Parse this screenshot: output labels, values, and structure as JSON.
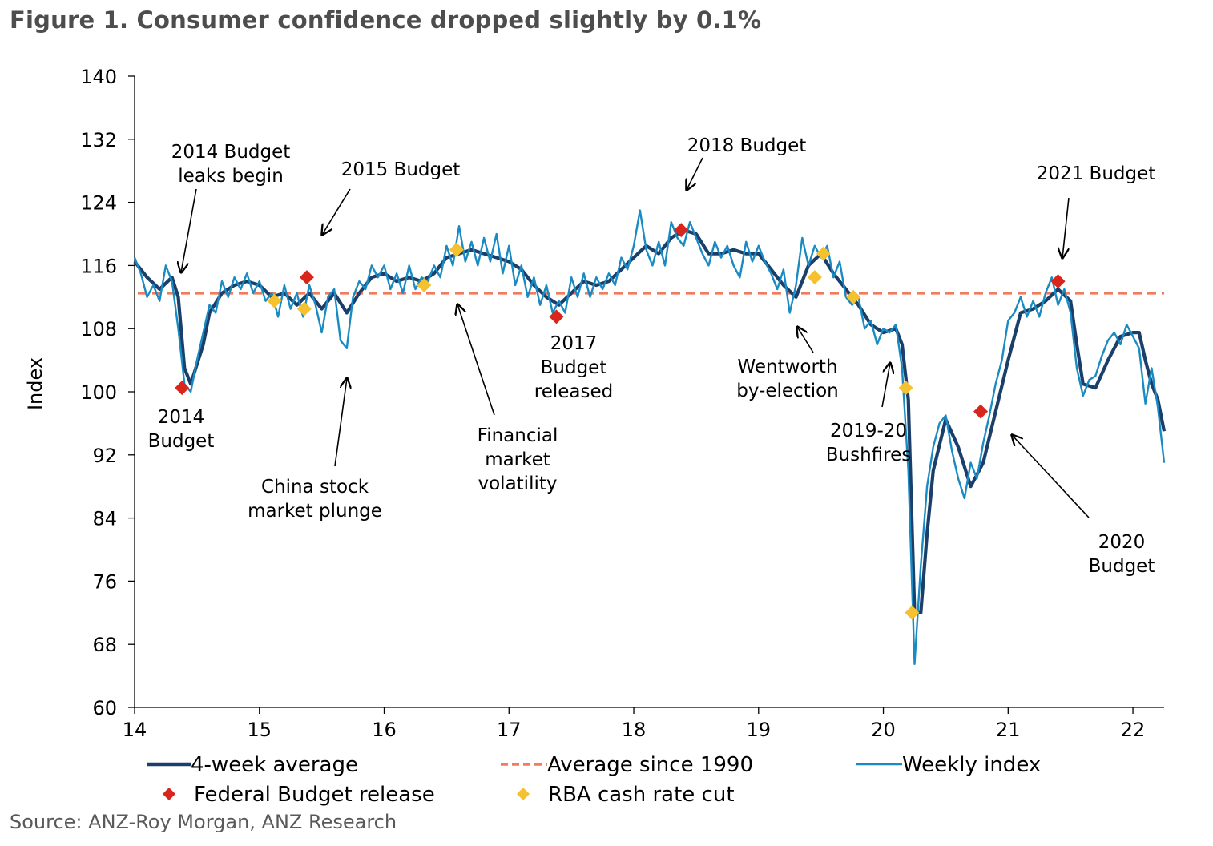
{
  "title": "Figure 1. Consumer confidence dropped slightly by 0.1%",
  "source": "Source: ANZ-Roy Morgan, ANZ Research",
  "colors": {
    "four_week": "#1b3f6b",
    "weekly": "#1a8bc2",
    "average": "#f47a5e",
    "budget_marker": "#d9261c",
    "rba_marker": "#f5c12e"
  },
  "chart_data": {
    "type": "line",
    "ylabel": "Index",
    "xlabel": "",
    "xlim": [
      14,
      22.25
    ],
    "ylim": [
      60,
      140
    ],
    "yticks": [
      "60",
      "68",
      "76",
      "84",
      "92",
      "100",
      "108",
      "116",
      "124",
      "132",
      "140"
    ],
    "xticks": [
      "14",
      "15",
      "16",
      "17",
      "18",
      "19",
      "20",
      "21",
      "22"
    ],
    "series": [
      {
        "name": "4-week average",
        "points": [
          [
            14.0,
            116.5
          ],
          [
            14.1,
            114.5
          ],
          [
            14.2,
            113.0
          ],
          [
            14.3,
            114.5
          ],
          [
            14.35,
            112.0
          ],
          [
            14.4,
            103.0
          ],
          [
            14.45,
            101.0
          ],
          [
            14.55,
            106.0
          ],
          [
            14.6,
            110.0
          ],
          [
            14.7,
            112.5
          ],
          [
            14.8,
            113.5
          ],
          [
            14.9,
            114.0
          ],
          [
            15.0,
            113.5
          ],
          [
            15.1,
            112.0
          ],
          [
            15.2,
            112.5
          ],
          [
            15.3,
            111.0
          ],
          [
            15.4,
            112.5
          ],
          [
            15.5,
            110.5
          ],
          [
            15.6,
            112.5
          ],
          [
            15.7,
            110.0
          ],
          [
            15.8,
            112.5
          ],
          [
            15.9,
            114.5
          ],
          [
            16.0,
            115.0
          ],
          [
            16.1,
            114.0
          ],
          [
            16.2,
            114.5
          ],
          [
            16.3,
            114.0
          ],
          [
            16.4,
            115.0
          ],
          [
            16.5,
            117.0
          ],
          [
            16.6,
            117.5
          ],
          [
            16.7,
            118.0
          ],
          [
            16.8,
            117.5
          ],
          [
            16.9,
            117.0
          ],
          [
            17.0,
            116.5
          ],
          [
            17.1,
            115.5
          ],
          [
            17.2,
            113.5
          ],
          [
            17.3,
            112.0
          ],
          [
            17.4,
            111.0
          ],
          [
            17.5,
            112.5
          ],
          [
            17.6,
            114.0
          ],
          [
            17.7,
            113.5
          ],
          [
            17.8,
            114.0
          ],
          [
            17.9,
            115.5
          ],
          [
            18.0,
            117.0
          ],
          [
            18.1,
            118.5
          ],
          [
            18.2,
            117.5
          ],
          [
            18.3,
            119.5
          ],
          [
            18.4,
            120.5
          ],
          [
            18.5,
            120.0
          ],
          [
            18.6,
            117.5
          ],
          [
            18.7,
            117.5
          ],
          [
            18.8,
            118.0
          ],
          [
            18.9,
            117.5
          ],
          [
            19.0,
            117.5
          ],
          [
            19.1,
            115.5
          ],
          [
            19.2,
            113.5
          ],
          [
            19.3,
            112.0
          ],
          [
            19.4,
            116.0
          ],
          [
            19.5,
            117.5
          ],
          [
            19.6,
            115.0
          ],
          [
            19.7,
            113.0
          ],
          [
            19.8,
            111.0
          ],
          [
            19.9,
            108.5
          ],
          [
            20.0,
            107.5
          ],
          [
            20.1,
            108.0
          ],
          [
            20.15,
            106.0
          ],
          [
            20.2,
            99.0
          ],
          [
            20.25,
            72.0
          ],
          [
            20.3,
            72.0
          ],
          [
            20.35,
            82.0
          ],
          [
            20.4,
            90.0
          ],
          [
            20.5,
            96.5
          ],
          [
            20.6,
            93.0
          ],
          [
            20.7,
            88.0
          ],
          [
            20.8,
            91.0
          ],
          [
            20.9,
            97.5
          ],
          [
            21.0,
            104.0
          ],
          [
            21.1,
            110.0
          ],
          [
            21.2,
            110.5
          ],
          [
            21.3,
            111.5
          ],
          [
            21.4,
            113.0
          ],
          [
            21.5,
            111.5
          ],
          [
            21.55,
            106.0
          ],
          [
            21.6,
            101.0
          ],
          [
            21.7,
            100.5
          ],
          [
            21.8,
            104.0
          ],
          [
            21.9,
            107.0
          ],
          [
            22.0,
            107.5
          ],
          [
            22.05,
            107.5
          ],
          [
            22.1,
            104.0
          ],
          [
            22.15,
            101.0
          ],
          [
            22.2,
            99.0
          ],
          [
            22.25,
            95.0
          ]
        ]
      },
      {
        "name": "Average since 1990",
        "value": 112.5
      },
      {
        "name": "Weekly index",
        "points": [
          [
            14.0,
            117.0
          ],
          [
            14.05,
            115.0
          ],
          [
            14.1,
            112.0
          ],
          [
            14.15,
            113.5
          ],
          [
            14.2,
            111.5
          ],
          [
            14.25,
            116.0
          ],
          [
            14.3,
            114.0
          ],
          [
            14.35,
            108.0
          ],
          [
            14.4,
            101.0
          ],
          [
            14.45,
            100.0
          ],
          [
            14.5,
            104.0
          ],
          [
            14.55,
            107.5
          ],
          [
            14.6,
            111.0
          ],
          [
            14.65,
            110.0
          ],
          [
            14.7,
            114.0
          ],
          [
            14.75,
            112.0
          ],
          [
            14.8,
            114.5
          ],
          [
            14.85,
            113.0
          ],
          [
            14.9,
            115.0
          ],
          [
            14.95,
            112.5
          ],
          [
            15.0,
            114.0
          ],
          [
            15.05,
            111.5
          ],
          [
            15.1,
            112.5
          ],
          [
            15.15,
            109.5
          ],
          [
            15.2,
            113.5
          ],
          [
            15.25,
            110.5
          ],
          [
            15.3,
            112.5
          ],
          [
            15.35,
            109.5
          ],
          [
            15.4,
            113.5
          ],
          [
            15.45,
            111.0
          ],
          [
            15.5,
            107.5
          ],
          [
            15.55,
            112.0
          ],
          [
            15.6,
            113.0
          ],
          [
            15.65,
            106.5
          ],
          [
            15.7,
            105.5
          ],
          [
            15.75,
            112.0
          ],
          [
            15.8,
            114.0
          ],
          [
            15.85,
            113.0
          ],
          [
            15.9,
            116.0
          ],
          [
            15.95,
            114.5
          ],
          [
            16.0,
            116.0
          ],
          [
            16.05,
            113.0
          ],
          [
            16.1,
            115.0
          ],
          [
            16.15,
            112.5
          ],
          [
            16.2,
            116.0
          ],
          [
            16.25,
            113.0
          ],
          [
            16.3,
            114.5
          ],
          [
            16.35,
            114.0
          ],
          [
            16.4,
            116.0
          ],
          [
            16.45,
            114.5
          ],
          [
            16.5,
            118.5
          ],
          [
            16.55,
            116.0
          ],
          [
            16.6,
            121.0
          ],
          [
            16.65,
            116.5
          ],
          [
            16.7,
            119.0
          ],
          [
            16.75,
            116.0
          ],
          [
            16.8,
            119.5
          ],
          [
            16.85,
            116.5
          ],
          [
            16.9,
            120.0
          ],
          [
            16.95,
            115.0
          ],
          [
            17.0,
            118.5
          ],
          [
            17.05,
            113.5
          ],
          [
            17.1,
            116.0
          ],
          [
            17.15,
            112.0
          ],
          [
            17.2,
            114.5
          ],
          [
            17.25,
            111.0
          ],
          [
            17.3,
            113.5
          ],
          [
            17.35,
            110.0
          ],
          [
            17.4,
            111.5
          ],
          [
            17.45,
            110.0
          ],
          [
            17.5,
            114.5
          ],
          [
            17.55,
            112.0
          ],
          [
            17.6,
            115.0
          ],
          [
            17.65,
            112.0
          ],
          [
            17.7,
            114.5
          ],
          [
            17.75,
            113.0
          ],
          [
            17.8,
            115.0
          ],
          [
            17.85,
            113.5
          ],
          [
            17.9,
            117.0
          ],
          [
            17.95,
            115.5
          ],
          [
            18.0,
            118.5
          ],
          [
            18.05,
            123.0
          ],
          [
            18.1,
            118.0
          ],
          [
            18.15,
            116.0
          ],
          [
            18.2,
            119.0
          ],
          [
            18.25,
            116.0
          ],
          [
            18.3,
            121.5
          ],
          [
            18.35,
            119.5
          ],
          [
            18.4,
            118.5
          ],
          [
            18.45,
            121.5
          ],
          [
            18.5,
            119.5
          ],
          [
            18.55,
            117.5
          ],
          [
            18.6,
            116.0
          ],
          [
            18.65,
            119.0
          ],
          [
            18.7,
            117.0
          ],
          [
            18.75,
            118.5
          ],
          [
            18.8,
            116.0
          ],
          [
            18.85,
            114.5
          ],
          [
            18.9,
            119.0
          ],
          [
            18.95,
            116.5
          ],
          [
            19.0,
            118.5
          ],
          [
            19.05,
            116.5
          ],
          [
            19.1,
            115.0
          ],
          [
            19.15,
            113.0
          ],
          [
            19.2,
            115.5
          ],
          [
            19.25,
            110.0
          ],
          [
            19.3,
            113.5
          ],
          [
            19.35,
            119.5
          ],
          [
            19.4,
            116.0
          ],
          [
            19.45,
            118.5
          ],
          [
            19.5,
            117.0
          ],
          [
            19.55,
            118.5
          ],
          [
            19.6,
            114.5
          ],
          [
            19.65,
            116.5
          ],
          [
            19.7,
            112.0
          ],
          [
            19.75,
            111.0
          ],
          [
            19.8,
            112.0
          ],
          [
            19.85,
            108.0
          ],
          [
            19.9,
            109.0
          ],
          [
            19.95,
            106.0
          ],
          [
            20.0,
            108.0
          ],
          [
            20.05,
            107.5
          ],
          [
            20.1,
            108.5
          ],
          [
            20.15,
            103.0
          ],
          [
            20.2,
            90.0
          ],
          [
            20.25,
            65.5
          ],
          [
            20.3,
            78.0
          ],
          [
            20.35,
            88.0
          ],
          [
            20.4,
            93.0
          ],
          [
            20.45,
            96.0
          ],
          [
            20.5,
            97.0
          ],
          [
            20.55,
            92.5
          ],
          [
            20.6,
            89.0
          ],
          [
            20.65,
            86.5
          ],
          [
            20.7,
            91.0
          ],
          [
            20.75,
            89.0
          ],
          [
            20.8,
            93.5
          ],
          [
            20.85,
            97.0
          ],
          [
            20.9,
            101.0
          ],
          [
            20.95,
            104.0
          ],
          [
            21.0,
            109.0
          ],
          [
            21.05,
            110.0
          ],
          [
            21.1,
            112.0
          ],
          [
            21.15,
            109.5
          ],
          [
            21.2,
            111.5
          ],
          [
            21.25,
            109.5
          ],
          [
            21.3,
            112.5
          ],
          [
            21.35,
            114.5
          ],
          [
            21.4,
            111.0
          ],
          [
            21.45,
            113.0
          ],
          [
            21.5,
            110.0
          ],
          [
            21.55,
            103.0
          ],
          [
            21.6,
            99.5
          ],
          [
            21.65,
            101.5
          ],
          [
            21.7,
            102.0
          ],
          [
            21.75,
            104.5
          ],
          [
            21.8,
            106.5
          ],
          [
            21.85,
            107.5
          ],
          [
            21.9,
            106.0
          ],
          [
            21.95,
            108.5
          ],
          [
            22.0,
            107.0
          ],
          [
            22.05,
            105.5
          ],
          [
            22.1,
            98.5
          ],
          [
            22.15,
            103.0
          ],
          [
            22.2,
            98.0
          ],
          [
            22.25,
            91.0
          ]
        ]
      }
    ],
    "markers": [
      {
        "name": "Federal Budget release",
        "points": [
          [
            14.38,
            100.5
          ],
          [
            15.38,
            114.5
          ],
          [
            17.38,
            109.5
          ],
          [
            18.38,
            120.5
          ],
          [
            20.78,
            97.5
          ],
          [
            21.4,
            114.0
          ]
        ]
      },
      {
        "name": "RBA cash rate cut",
        "points": [
          [
            15.12,
            111.5
          ],
          [
            15.36,
            110.5
          ],
          [
            16.32,
            113.5
          ],
          [
            16.58,
            118.0
          ],
          [
            19.45,
            114.5
          ],
          [
            19.52,
            117.5
          ],
          [
            19.76,
            112.0
          ],
          [
            20.18,
            100.5
          ],
          [
            20.23,
            72.0
          ]
        ]
      }
    ],
    "annotations": [
      {
        "lines": [
          "2014 Budget",
          "leaks begin"
        ],
        "at": [
          14.38,
          115.0
        ]
      },
      {
        "lines": [
          "2014",
          "Budget"
        ],
        "at": [
          14.38,
          100.5
        ]
      },
      {
        "lines": [
          "2015 Budget"
        ],
        "at": [
          15.5,
          119.5
        ]
      },
      {
        "lines": [
          "China stock",
          "market plunge"
        ],
        "at": [
          15.7,
          102.0
        ]
      },
      {
        "lines": [
          "Financial",
          "market",
          "volatility"
        ],
        "at": [
          16.6,
          110.5
        ]
      },
      {
        "lines": [
          "2017",
          "Budget",
          "released"
        ],
        "at": [
          17.38,
          109.5
        ]
      },
      {
        "lines": [
          "2018 Budget"
        ],
        "at": [
          18.4,
          124.5
        ]
      },
      {
        "lines": [
          "Wentworth",
          "by-election"
        ],
        "at": [
          19.3,
          108.0
        ]
      },
      {
        "lines": [
          "2019-20",
          "Bushfires"
        ],
        "at": [
          20.05,
          104.0
        ]
      },
      {
        "lines": [
          "2021 Budget"
        ],
        "at": [
          21.4,
          116.5
        ]
      },
      {
        "lines": [
          "2020",
          "Budget"
        ],
        "at": [
          21.0,
          94.5
        ]
      }
    ],
    "legend": {
      "position": "bottom",
      "items": [
        "4-week average",
        "Average since 1990",
        "Weekly index",
        "Federal Budget release",
        "RBA cash rate cut"
      ]
    },
    "grid": false
  }
}
